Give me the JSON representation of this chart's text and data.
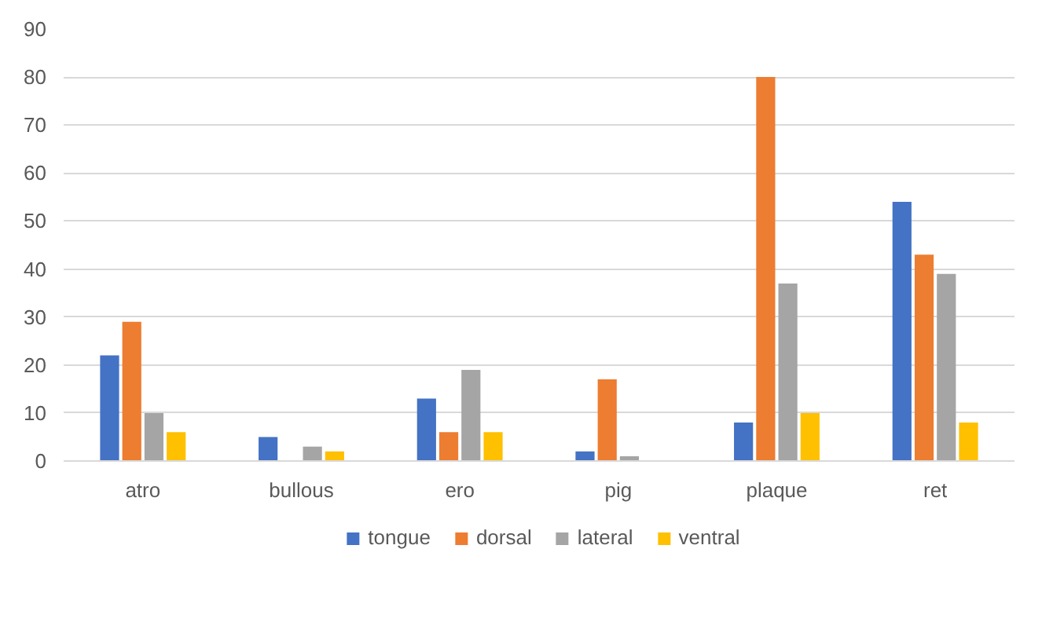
{
  "chart_data": {
    "type": "bar",
    "categories": [
      "atro",
      "bullous",
      "ero",
      "pig",
      "plaque",
      "ret"
    ],
    "series": [
      {
        "name": "tongue",
        "color": "#4472c4",
        "values": [
          22,
          5,
          13,
          2,
          8,
          54
        ]
      },
      {
        "name": "dorsal",
        "color": "#ed7d31",
        "values": [
          29,
          0,
          6,
          17,
          80,
          43
        ]
      },
      {
        "name": "lateral",
        "color": "#a5a5a5",
        "values": [
          10,
          3,
          19,
          1,
          37,
          39
        ]
      },
      {
        "name": "ventral",
        "color": "#ffc000",
        "values": [
          6,
          2,
          6,
          0,
          10,
          8
        ]
      }
    ],
    "ylim": [
      0,
      90
    ],
    "yticks": [
      0,
      10,
      20,
      30,
      40,
      50,
      60,
      70,
      80,
      90
    ],
    "grid": "y",
    "legend": "bottom"
  }
}
